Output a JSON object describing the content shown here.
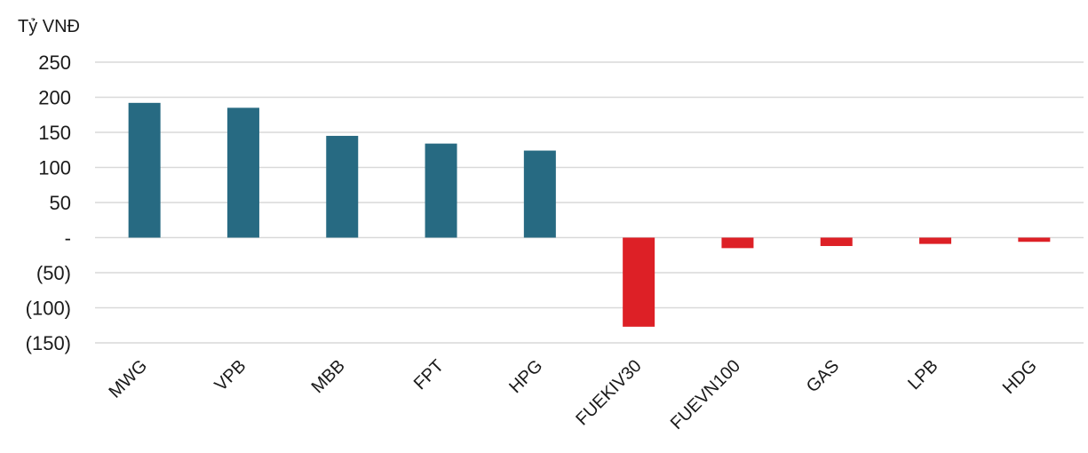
{
  "chart_data": {
    "type": "bar",
    "ylabel": "Tỷ VNĐ",
    "ylim": [
      -150,
      250
    ],
    "yticks": [
      250,
      200,
      150,
      100,
      50,
      0,
      -50,
      -100,
      -150
    ],
    "ytick_labels": [
      "250",
      "200",
      "150",
      "100",
      "50",
      "-",
      "(50)",
      "(100)",
      "(150)"
    ],
    "grid": true,
    "categories": [
      "MWG",
      "VPB",
      "MBB",
      "FPT",
      "HPG",
      "FUEKIV30",
      "FUEVN100",
      "GAS",
      "LPB",
      "HDG"
    ],
    "values": [
      192,
      185,
      145,
      134,
      124,
      -127,
      -15,
      -12,
      -9,
      -6
    ],
    "colors": {
      "positive": "#276a82",
      "negative": "#dd2026"
    }
  }
}
